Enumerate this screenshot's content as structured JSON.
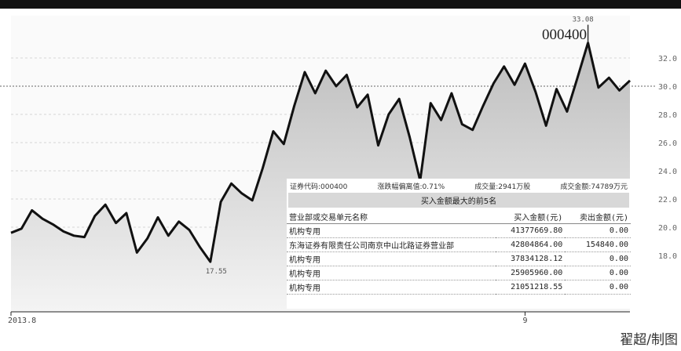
{
  "chart_data": {
    "type": "area",
    "title": "000400",
    "ylim": [
      14,
      35
    ],
    "y_ticks": [
      {
        "value": 32,
        "label": "32.0"
      },
      {
        "value": 30,
        "label": "30.0"
      },
      {
        "value": 28,
        "label": "28.0"
      },
      {
        "value": 26,
        "label": "26.0"
      },
      {
        "value": 24,
        "label": "24.0"
      },
      {
        "value": 22,
        "label": "22.0"
      },
      {
        "value": 20,
        "label": "20.0"
      },
      {
        "value": 18,
        "label": "18.0"
      }
    ],
    "x_ticks": [
      {
        "index": 0,
        "label": "2013.8"
      },
      {
        "index": 49,
        "label": "9"
      }
    ],
    "annotations": [
      {
        "index": 19,
        "value": 17.55,
        "label": "17.55"
      },
      {
        "index": 55,
        "value": 33.08,
        "label": "33.08"
      }
    ],
    "series": [
      {
        "values": [
          19.6,
          19.9,
          21.2,
          20.6,
          20.2,
          19.7,
          19.4,
          19.3,
          20.8,
          21.6,
          20.3,
          21.0,
          18.2,
          19.2,
          20.7,
          19.4,
          20.4,
          19.8,
          18.6,
          17.55,
          21.8,
          23.1,
          22.4,
          21.9,
          24.2,
          26.8,
          25.9,
          28.6,
          31.0,
          29.5,
          31.1,
          30.0,
          30.8,
          28.5,
          29.4,
          25.8,
          28.0,
          29.1,
          26.4,
          23.3,
          28.8,
          27.6,
          29.5,
          27.3,
          26.9,
          28.6,
          30.2,
          31.4,
          30.1,
          31.6,
          29.6,
          27.2,
          29.8,
          28.2,
          30.6,
          33.08,
          29.9,
          30.6,
          29.7,
          30.4
        ]
      }
    ]
  },
  "overlay_table": {
    "header_left": "证券代码:000400",
    "header_mid1": "涨跌幅偏离值:0.71%",
    "header_mid2": "成交量:2941万股",
    "header_right": "成交金额:74789万元",
    "title": "买入金额最大的前5名",
    "columns": [
      "营业部或交易单元名称",
      "买入金额(元)",
      "卖出金额(元)"
    ],
    "rows": [
      [
        "机构专用",
        "41377669.80",
        "0.00"
      ],
      [
        "东海证券有限责任公司南京中山北路证券营业部",
        "42804864.00",
        "154840.00"
      ],
      [
        "机构专用",
        "37834128.12",
        "0.00"
      ],
      [
        "机构专用",
        "25905960.00",
        "0.00"
      ],
      [
        "机构专用",
        "21051218.55",
        "0.00"
      ]
    ]
  },
  "credit": "翟超/制图",
  "colors": {
    "line": "#111111",
    "area_top": "#bdbdbd",
    "area_bottom": "#f4f4f4",
    "axis": "#222222"
  }
}
